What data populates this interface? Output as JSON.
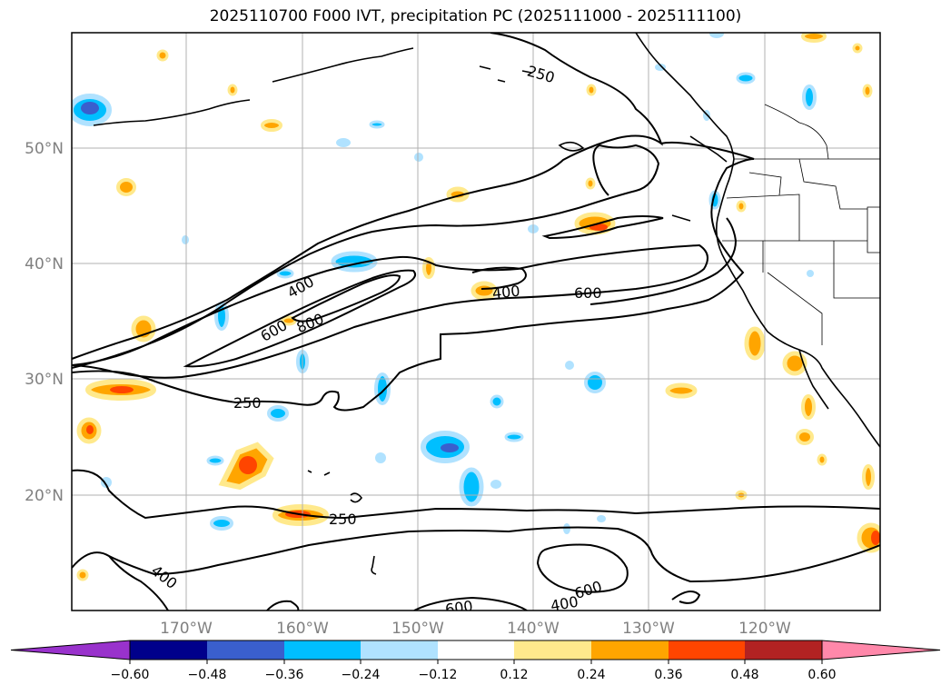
{
  "title": "2025110700 F000 IVT, precipitation PC (2025111000 - 2025111100)",
  "latitude_labels": [
    "50°N",
    "40°N",
    "30°N",
    "20°N"
  ],
  "longitude_labels": [
    "170°W",
    "160°W",
    "150°W",
    "140°W",
    "130°W",
    "120°W"
  ],
  "contour_labels": [
    "250",
    "400",
    "600",
    "800",
    "400",
    "600",
    "250",
    "250",
    "400",
    "600",
    "400",
    "600"
  ],
  "colorbar": {
    "tick_labels": [
      "−0.60",
      "−0.48",
      "−0.36",
      "−0.24",
      "−0.12",
      "0.12",
      "0.24",
      "0.36",
      "0.48",
      "0.60"
    ],
    "colors": [
      "#9932cc",
      "#00008b",
      "#3a5fcd",
      "#00bfff",
      "#b0e2ff",
      "#ffffff",
      "#ffe98c",
      "#ffa500",
      "#ff4500",
      "#b22222",
      "#ff88aa"
    ]
  }
}
